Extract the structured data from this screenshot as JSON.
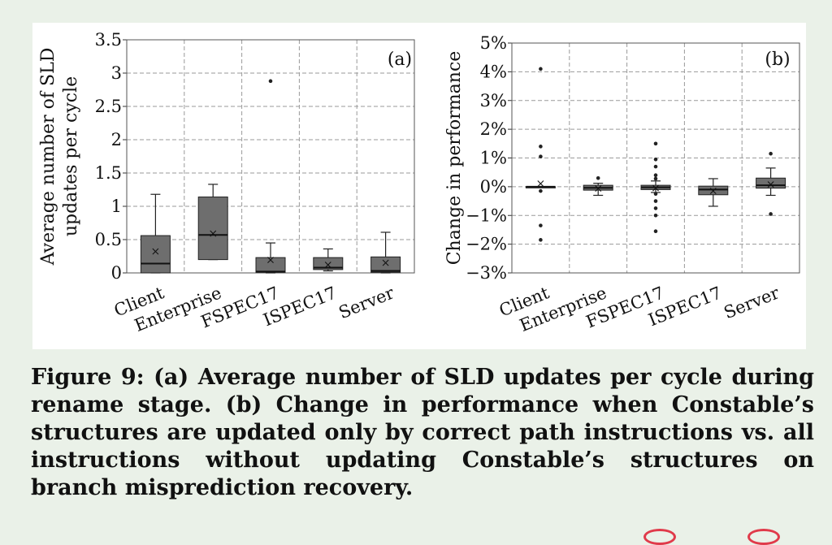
{
  "caption": "Figure 9: (a) Average number of SLD updates per cycle during rename stage. (b) Change in performance when Constable’s structures are updated only by correct path instructions vs. all instructions without updating Constable’s structures on branch misprediction recovery.",
  "colors": {
    "page_background": "#eaf1e8",
    "figure_background": "#ffffff",
    "box_fill": "#6e6e6e",
    "grid": "#9a9a9a",
    "corner_marks": "#e03a4a"
  },
  "chart_data": [
    {
      "type": "box",
      "panel_label": "(a)",
      "ylabel": "Average number of SLD updates per cycle",
      "ylim": [
        0,
        3.5
      ],
      "yticks": [
        0,
        0.5,
        1,
        1.5,
        2,
        2.5,
        3,
        3.5
      ],
      "ytick_labels": [
        "0",
        "0.5",
        "1",
        "1.5",
        "2",
        "2.5",
        "3",
        "3.5"
      ],
      "grid": true,
      "categories": [
        "Client",
        "Enterprise",
        "FSPEC17",
        "ISPEC17",
        "Server"
      ],
      "boxes": [
        {
          "min": 0,
          "q1": 0,
          "median": 0.14,
          "q3": 0.56,
          "max": 1.18,
          "mean": 0.33,
          "outliers": []
        },
        {
          "min": 0.2,
          "q1": 0.2,
          "median": 0.57,
          "q3": 1.14,
          "max": 1.33,
          "mean": 0.6,
          "outliers": []
        },
        {
          "min": 0,
          "q1": 0.01,
          "median": 0.02,
          "q3": 0.23,
          "max": 0.45,
          "mean": 0.2,
          "outliers": [
            2.88
          ]
        },
        {
          "min": 0.03,
          "q1": 0.05,
          "median": 0.08,
          "q3": 0.23,
          "max": 0.36,
          "mean": 0.13,
          "outliers": []
        },
        {
          "min": 0,
          "q1": 0.01,
          "median": 0.03,
          "q3": 0.24,
          "max": 0.61,
          "mean": 0.16,
          "outliers": []
        }
      ]
    },
    {
      "type": "box",
      "panel_label": "(b)",
      "ylabel": "Change in performance",
      "ylim": [
        -3,
        5
      ],
      "yticks": [
        -3,
        -2,
        -1,
        0,
        1,
        2,
        3,
        4,
        5
      ],
      "ytick_labels": [
        "−3%",
        "−2%",
        "−1%",
        "0%",
        "1%",
        "2%",
        "3%",
        "4%",
        "5%"
      ],
      "grid": true,
      "categories": [
        "Client",
        "Enterprise",
        "FSPEC17",
        "ISPEC17",
        "Server"
      ],
      "boxes": [
        {
          "min": 0,
          "q1": 0,
          "median": 0,
          "q3": 0,
          "max": 0,
          "mean": 0.12,
          "outliers": [
            4.1,
            1.4,
            1.05,
            -0.15,
            -1.35,
            -1.85
          ]
        },
        {
          "min": -0.3,
          "q1": -0.12,
          "median": -0.04,
          "q3": 0.05,
          "max": 0.12,
          "mean": -0.05,
          "outliers": [
            0.3
          ]
        },
        {
          "min": -0.2,
          "q1": -0.1,
          "median": -0.02,
          "q3": 0.05,
          "max": 0.2,
          "mean": -0.03,
          "outliers": [
            1.5,
            0.95,
            0.7,
            0.4,
            0.28,
            -0.25,
            -0.5,
            -0.75,
            -1.0,
            -1.55
          ]
        },
        {
          "min": -0.68,
          "q1": -0.28,
          "median": -0.1,
          "q3": 0.02,
          "max": 0.28,
          "mean": -0.13,
          "outliers": []
        },
        {
          "min": -0.3,
          "q1": -0.05,
          "median": 0.05,
          "q3": 0.3,
          "max": 0.65,
          "mean": 0.1,
          "outliers": [
            1.15,
            -0.95
          ]
        }
      ]
    }
  ]
}
